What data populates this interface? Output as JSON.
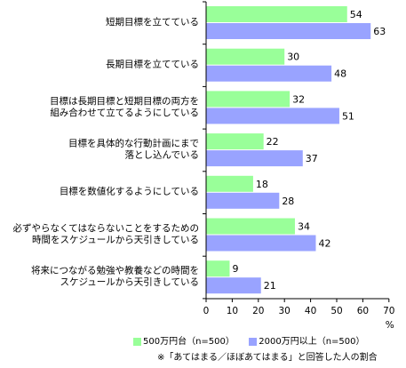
{
  "chart_data": {
    "type": "bar",
    "orientation": "horizontal",
    "categories": [
      [
        "短期目標を立てている"
      ],
      [
        "長期目標を立てている"
      ],
      [
        "目標は長期目標と短期目標の両方を",
        "組み合わせて立てるようにしている"
      ],
      [
        "目標を具体的な行動計画にまで",
        "落とし込んでいる"
      ],
      [
        "目標を数値化するようにしている"
      ],
      [
        "必ずやらなくてはならないことをするための",
        "時間をスケジュールから天引きしている"
      ],
      [
        "将来につながる勉強や教養などの時間を",
        "スケジュールから天引きしている"
      ]
    ],
    "series": [
      {
        "name": "500万円台（n=500）",
        "color": "#99ff99",
        "values": [
          54,
          30,
          32,
          22,
          18,
          34,
          9
        ]
      },
      {
        "name": "2000万円以上（n=500）",
        "color": "#99a3ff",
        "values": [
          63,
          48,
          51,
          37,
          28,
          42,
          21
        ]
      }
    ],
    "xlim": [
      0,
      70
    ],
    "xticks": [
      "0",
      "10",
      "20",
      "30",
      "40",
      "50",
      "60",
      "70"
    ],
    "xunit": "%",
    "grid": false,
    "legend_position": "bottom",
    "note": "※「あてはまる／ほぼあてはまる」と回答した人の割合"
  }
}
